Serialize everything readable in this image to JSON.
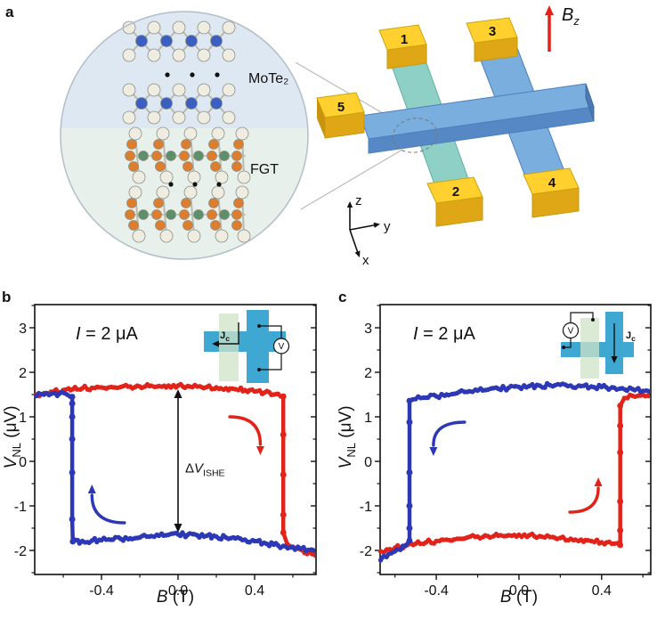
{
  "figure_labels": {
    "panel_a": "a",
    "panel_b": "b",
    "panel_c": "c"
  },
  "panel_a": {
    "crystal_inset": {
      "material_top": "MoTe₂",
      "material_bottom": "FGT"
    },
    "device": {
      "contact_labels": [
        "1",
        "2",
        "3",
        "4",
        "5"
      ],
      "field_label": "B",
      "field_sub": "z",
      "axis_labels": [
        "z",
        "y",
        "x"
      ]
    },
    "colors": {
      "mote2_bg": "#dee8f3",
      "fgt_bg": "#e7f0ea",
      "te_atom": "#efede2",
      "mo_atom": "#3a5fc0",
      "fe_atom": "#dd7d2e",
      "ge_atom": "#5d8f6a",
      "teal_bar": "#8ed0c5",
      "blue_bar": "#7aaede",
      "blue_bar_front": "#5588c4",
      "gold_top": "#ffd02e",
      "gold_front": "#dfa616",
      "field_arrow": "#e32119"
    }
  },
  "panel_b": {
    "current_symbol": "I",
    "current_rest": " = 2 μA",
    "xlabel_symbol": "B",
    "xlabel_rest": " (T)",
    "ylabel_symbol": "V",
    "ylabel_sub": "NL",
    "ylabel_rest": " (μV)",
    "inset": {
      "current_label": "J",
      "current_sub": "c",
      "voltmeter_label": "V"
    }
  },
  "panel_c": {
    "current_symbol": "I",
    "current_rest": " = 2 μA",
    "xlabel_symbol": "B",
    "xlabel_rest": " (T)",
    "ylabel_symbol": "V",
    "ylabel_sub": "NL",
    "ylabel_rest": " (μV)",
    "inset": {
      "current_label": "J",
      "current_sub": "c",
      "voltmeter_label": "V"
    }
  },
  "chart_data": [
    {
      "type": "line",
      "panel": "b",
      "xlabel": "B (T)",
      "ylabel": "V_NL (uV)",
      "xlim": [
        -0.749,
        0.721
      ],
      "ylim": [
        -2.54,
        3.52
      ],
      "x_ticks": [
        -0.4,
        0.0,
        0.4
      ],
      "x_tick_labels": [
        "-0.4",
        "0.0",
        "0.4"
      ],
      "x_minor": [
        -0.6,
        -0.2,
        0.2,
        0.6
      ],
      "y_ticks": [
        -2,
        -1,
        0,
        1,
        2,
        3
      ],
      "y_tick_labels": [
        "-2",
        "-1",
        "0",
        "1",
        "2",
        "3"
      ],
      "y_minor": [
        -2.5,
        -1.5,
        -0.5,
        0.5,
        1.5,
        2.5,
        3.5
      ],
      "grid": false,
      "annotation": {
        "x": 0.0,
        "y_from": 1.62,
        "y_to": -1.6,
        "label_delta": "Δ",
        "label_symbol": "V",
        "label_sub": "ISHE"
      },
      "sweep_arrows": [
        {
          "color": "#2c38b5",
          "tail": [
            -0.28,
            -1.38
          ],
          "head": [
            -0.45,
            -0.6
          ]
        },
        {
          "color": "#e2231a",
          "tail": [
            0.27,
            1.0
          ],
          "head": [
            0.43,
            0.22
          ]
        }
      ],
      "series": [
        {
          "name": "sweep-up",
          "color": "#e2231a",
          "points": [
            [
              -0.74,
              1.5
            ],
            [
              -0.7,
              1.53
            ],
            [
              -0.65,
              1.57
            ],
            [
              -0.6,
              1.6
            ],
            [
              -0.55,
              1.62
            ],
            [
              -0.5,
              1.64
            ],
            [
              -0.45,
              1.65
            ],
            [
              -0.4,
              1.66
            ],
            [
              -0.35,
              1.67
            ],
            [
              -0.3,
              1.67
            ],
            [
              -0.25,
              1.68
            ],
            [
              -0.2,
              1.68
            ],
            [
              -0.15,
              1.69
            ],
            [
              -0.1,
              1.69
            ],
            [
              -0.05,
              1.7
            ],
            [
              0.0,
              1.7
            ],
            [
              0.05,
              1.69
            ],
            [
              0.1,
              1.68
            ],
            [
              0.15,
              1.67
            ],
            [
              0.2,
              1.66
            ],
            [
              0.25,
              1.64
            ],
            [
              0.3,
              1.62
            ],
            [
              0.35,
              1.6
            ],
            [
              0.4,
              1.57
            ],
            [
              0.45,
              1.54
            ],
            [
              0.5,
              1.5
            ],
            [
              0.55,
              1.46
            ],
            [
              0.55,
              0.6
            ],
            [
              0.55,
              -0.3
            ],
            [
              0.55,
              -1.2
            ],
            [
              0.55,
              -1.6
            ],
            [
              0.57,
              -1.85
            ],
            [
              0.6,
              -1.92
            ],
            [
              0.65,
              -2.0
            ],
            [
              0.7,
              -2.08
            ],
            [
              0.72,
              -2.12
            ]
          ]
        },
        {
          "name": "sweep-down",
          "color": "#2c38b5",
          "points": [
            [
              0.72,
              -2.02
            ],
            [
              0.68,
              -1.99
            ],
            [
              0.64,
              -1.96
            ],
            [
              0.6,
              -1.93
            ],
            [
              0.55,
              -1.9
            ],
            [
              0.5,
              -1.87
            ],
            [
              0.45,
              -1.83
            ],
            [
              0.4,
              -1.79
            ],
            [
              0.35,
              -1.76
            ],
            [
              0.3,
              -1.73
            ],
            [
              0.25,
              -1.71
            ],
            [
              0.2,
              -1.69
            ],
            [
              0.15,
              -1.67
            ],
            [
              0.1,
              -1.66
            ],
            [
              0.05,
              -1.65
            ],
            [
              0.0,
              -1.64
            ],
            [
              -0.05,
              -1.65
            ],
            [
              -0.1,
              -1.67
            ],
            [
              -0.15,
              -1.69
            ],
            [
              -0.2,
              -1.71
            ],
            [
              -0.25,
              -1.73
            ],
            [
              -0.3,
              -1.74
            ],
            [
              -0.35,
              -1.76
            ],
            [
              -0.4,
              -1.77
            ],
            [
              -0.45,
              -1.78
            ],
            [
              -0.5,
              -1.79
            ],
            [
              -0.55,
              -1.8
            ],
            [
              -0.553,
              -1.3
            ],
            [
              -0.553,
              -0.25
            ],
            [
              -0.553,
              0.5
            ],
            [
              -0.553,
              1.0
            ],
            [
              -0.553,
              1.3
            ],
            [
              -0.553,
              1.45
            ],
            [
              -0.58,
              1.5
            ],
            [
              -0.62,
              1.52
            ],
            [
              -0.66,
              1.52
            ],
            [
              -0.7,
              1.5
            ],
            [
              -0.74,
              1.47
            ]
          ]
        }
      ]
    },
    {
      "type": "line",
      "panel": "c",
      "xlabel": "B (T)",
      "ylabel": "V_NL (uV)",
      "xlim": [
        -0.672,
        0.638
      ],
      "ylim": [
        -2.54,
        3.52
      ],
      "x_ticks": [
        -0.4,
        0.0,
        0.4
      ],
      "x_tick_labels": [
        "-0.4",
        "0.0",
        "0.4"
      ],
      "x_minor": [
        -0.6,
        -0.2,
        0.2,
        0.6
      ],
      "y_ticks": [
        -2,
        -1,
        0,
        1,
        2,
        3
      ],
      "y_tick_labels": [
        "-2",
        "-1",
        "0",
        "1",
        "2",
        "3"
      ],
      "y_minor": [
        -2.5,
        -1.5,
        -0.5,
        0.5,
        1.5,
        2.5,
        3.5
      ],
      "grid": false,
      "annotation": null,
      "sweep_arrows": [
        {
          "color": "#2c38b5",
          "tail": [
            -0.263,
            0.88
          ],
          "head": [
            -0.414,
            0.2
          ]
        },
        {
          "color": "#e2231a",
          "tail": [
            0.246,
            -1.14
          ],
          "head": [
            0.384,
            -0.44
          ]
        }
      ],
      "series": [
        {
          "name": "sweep-up",
          "color": "#e2231a",
          "points": [
            [
              -0.67,
              -2.02
            ],
            [
              -0.64,
              -1.98
            ],
            [
              -0.6,
              -1.94
            ],
            [
              -0.55,
              -1.89
            ],
            [
              -0.5,
              -1.85
            ],
            [
              -0.45,
              -1.82
            ],
            [
              -0.4,
              -1.79
            ],
            [
              -0.35,
              -1.76
            ],
            [
              -0.3,
              -1.74
            ],
            [
              -0.25,
              -1.71
            ],
            [
              -0.2,
              -1.69
            ],
            [
              -0.15,
              -1.68
            ],
            [
              -0.1,
              -1.67
            ],
            [
              -0.05,
              -1.66
            ],
            [
              0.0,
              -1.65
            ],
            [
              0.05,
              -1.66
            ],
            [
              0.1,
              -1.68
            ],
            [
              0.15,
              -1.7
            ],
            [
              0.2,
              -1.72
            ],
            [
              0.25,
              -1.74
            ],
            [
              0.3,
              -1.76
            ],
            [
              0.35,
              -1.79
            ],
            [
              0.4,
              -1.82
            ],
            [
              0.45,
              -1.85
            ],
            [
              0.49,
              -1.88
            ],
            [
              0.49,
              -1.55
            ],
            [
              0.49,
              -0.9
            ],
            [
              0.49,
              0.2
            ],
            [
              0.49,
              0.8
            ],
            [
              0.49,
              1.25
            ],
            [
              0.51,
              1.42
            ],
            [
              0.55,
              1.47
            ],
            [
              0.6,
              1.49
            ],
            [
              0.64,
              1.46
            ]
          ]
        },
        {
          "name": "sweep-down",
          "color": "#2c38b5",
          "points": [
            [
              0.64,
              1.55
            ],
            [
              0.6,
              1.58
            ],
            [
              0.55,
              1.62
            ],
            [
              0.5,
              1.64
            ],
            [
              0.45,
              1.66
            ],
            [
              0.4,
              1.67
            ],
            [
              0.35,
              1.68
            ],
            [
              0.3,
              1.69
            ],
            [
              0.25,
              1.7
            ],
            [
              0.2,
              1.72
            ],
            [
              0.15,
              1.71
            ],
            [
              0.1,
              1.7
            ],
            [
              0.05,
              1.69
            ],
            [
              0.0,
              1.67
            ],
            [
              -0.05,
              1.65
            ],
            [
              -0.1,
              1.63
            ],
            [
              -0.15,
              1.61
            ],
            [
              -0.2,
              1.59
            ],
            [
              -0.25,
              1.56
            ],
            [
              -0.3,
              1.53
            ],
            [
              -0.35,
              1.5
            ],
            [
              -0.4,
              1.46
            ],
            [
              -0.45,
              1.43
            ],
            [
              -0.5,
              1.4
            ],
            [
              -0.53,
              1.36
            ],
            [
              -0.53,
              0.88
            ],
            [
              -0.53,
              -0.25
            ],
            [
              -0.53,
              -1.0
            ],
            [
              -0.53,
              -1.5
            ],
            [
              -0.53,
              -1.78
            ],
            [
              -0.55,
              -1.9
            ],
            [
              -0.59,
              -1.98
            ],
            [
              -0.63,
              -2.08
            ],
            [
              -0.67,
              -2.22
            ]
          ]
        }
      ]
    }
  ]
}
